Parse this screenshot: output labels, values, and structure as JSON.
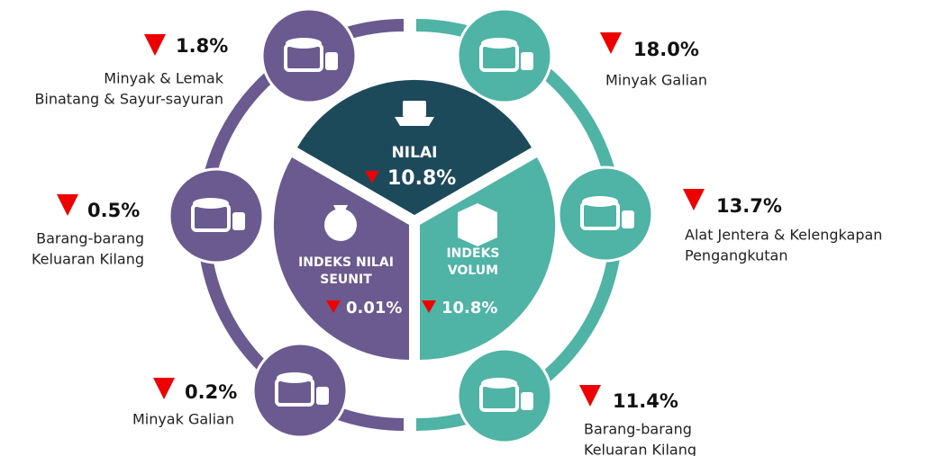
{
  "center": {
    "nilai": {
      "label": "NILAI",
      "value": "10.8%"
    },
    "seunit": {
      "label": [
        "INDEKS NILAI",
        "SEUNIT"
      ],
      "value": "0.01%"
    },
    "volum": {
      "label": [
        "INDEKS",
        "VOLUM"
      ],
      "value": "10.8%"
    }
  },
  "items": [
    {
      "value": "1.8%",
      "lines": [
        "Minyak & Lemak",
        "Binatang & Sayur-sayuran"
      ]
    },
    {
      "value": "0.5%",
      "lines": [
        "Barang-barang",
        "Keluaran Kilang"
      ]
    },
    {
      "value": "0.2%",
      "lines": [
        "Minyak Galian"
      ]
    },
    {
      "value": "18.0%",
      "lines": [
        "Minyak Galian"
      ]
    },
    {
      "value": "13.7%",
      "lines": [
        "Alat Jentera & Kelengkapan",
        "Pengangkutan"
      ]
    },
    {
      "value": "11.4%",
      "lines": [
        "Barang-barang",
        "Keluaran Kilang"
      ]
    }
  ]
}
